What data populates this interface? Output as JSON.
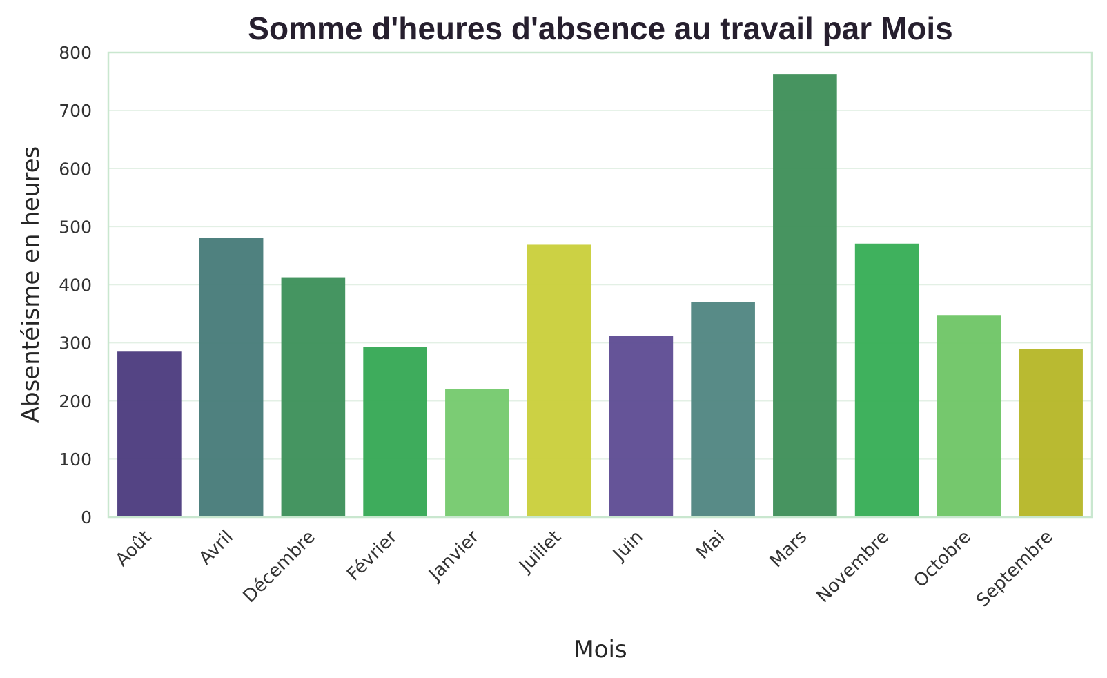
{
  "chart_data": {
    "type": "bar",
    "title": "Somme d'heures d'absence au travail par Mois",
    "xlabel": "Mois",
    "ylabel": "Absentéisme en heures",
    "categories": [
      "Août",
      "Avril",
      "Décembre",
      "Février",
      "Janvier",
      "Juillet",
      "Juin",
      "Mai",
      "Mars",
      "Novembre",
      "Octobre",
      "Septembre"
    ],
    "values": [
      285,
      481,
      413,
      293,
      220,
      469,
      312,
      370,
      763,
      471,
      348,
      290
    ],
    "colors": [
      "#4b3a7d",
      "#467a78",
      "#3b8f58",
      "#34a853",
      "#74c96d",
      "#c9cf3a",
      "#5d4b92",
      "#4f8581",
      "#3d8e57",
      "#35ad54",
      "#6ec565",
      "#b5b626"
    ],
    "ylim": [
      0,
      800
    ],
    "yticks": [
      0,
      100,
      200,
      300,
      400,
      500,
      600,
      700,
      800
    ],
    "grid": true
  }
}
